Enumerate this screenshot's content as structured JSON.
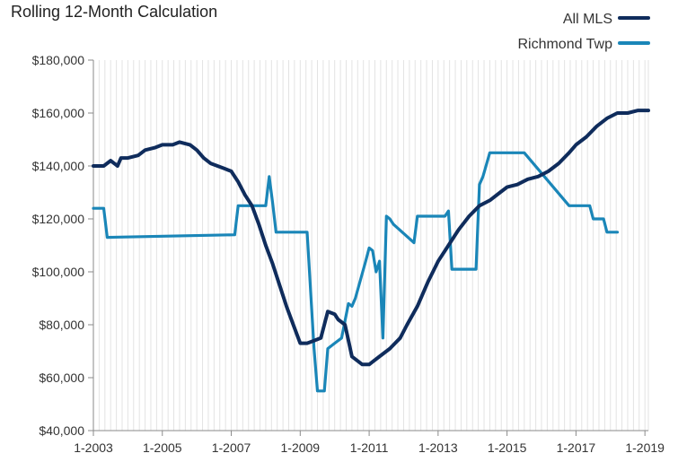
{
  "chart_data": {
    "type": "line",
    "title": "Rolling 12-Month Calculation",
    "xlabel": "",
    "ylabel": "",
    "grid": "vertical",
    "legend_position": "top-right",
    "x_ticks": [
      "1-2003",
      "1-2005",
      "1-2007",
      "1-2009",
      "1-2011",
      "1-2013",
      "1-2015",
      "1-2017",
      "1-2019"
    ],
    "y_ticks": [
      "$40,000",
      "$60,000",
      "$80,000",
      "$100,000",
      "$120,000",
      "$140,000",
      "$160,000",
      "$180,000"
    ],
    "xlim": [
      2003.0,
      2019.1
    ],
    "ylim": [
      40000,
      180000
    ],
    "series": [
      {
        "name": "All MLS",
        "color": "#0f2c5c",
        "x": [
          2003.0,
          2003.3,
          2003.5,
          2003.7,
          2003.8,
          2004.0,
          2004.3,
          2004.5,
          2004.8,
          2005.0,
          2005.3,
          2005.5,
          2005.8,
          2006.0,
          2006.2,
          2006.4,
          2006.6,
          2006.8,
          2007.0,
          2007.2,
          2007.4,
          2007.6,
          2007.8,
          2008.0,
          2008.2,
          2008.4,
          2008.6,
          2008.8,
          2009.0,
          2009.2,
          2009.4,
          2009.6,
          2009.8,
          2010.0,
          2010.1,
          2010.3,
          2010.5,
          2010.8,
          2011.0,
          2011.1,
          2011.3,
          2011.6,
          2011.9,
          2012.1,
          2012.4,
          2012.7,
          2013.0,
          2013.3,
          2013.6,
          2013.9,
          2014.2,
          2014.5,
          2014.8,
          2015.0,
          2015.3,
          2015.6,
          2015.9,
          2016.2,
          2016.5,
          2016.8,
          2017.0,
          2017.3,
          2017.6,
          2017.9,
          2018.2,
          2018.5,
          2018.8,
          2019.0,
          2019.1
        ],
        "y": [
          140000,
          140000,
          142000,
          140000,
          143000,
          143000,
          144000,
          146000,
          147000,
          148000,
          148000,
          149000,
          148000,
          146000,
          143000,
          141000,
          140000,
          139000,
          138000,
          134000,
          129000,
          125000,
          118000,
          110000,
          103000,
          95000,
          87000,
          80000,
          73000,
          73000,
          74000,
          75000,
          85000,
          84000,
          82000,
          80000,
          68000,
          65000,
          65000,
          66000,
          68000,
          71000,
          75000,
          80000,
          87000,
          96000,
          104000,
          110000,
          116000,
          121000,
          125000,
          127000,
          130000,
          132000,
          133000,
          135000,
          136000,
          138000,
          141000,
          145000,
          148000,
          151000,
          155000,
          158000,
          160000,
          160000,
          161000,
          161000,
          161000
        ]
      },
      {
        "name": "Richmond Twp",
        "color": "#1a86b8",
        "x": [
          2003.0,
          2003.3,
          2003.4,
          2007.1,
          2007.2,
          2008.0,
          2008.1,
          2008.2,
          2008.3,
          2009.2,
          2009.4,
          2009.5,
          2009.7,
          2009.8,
          2010.0,
          2010.2,
          2010.4,
          2010.5,
          2010.6,
          2010.9,
          2011.0,
          2011.1,
          2011.2,
          2011.3,
          2011.4,
          2011.5,
          2011.6,
          2011.7,
          2012.3,
          2012.4,
          2013.2,
          2013.3,
          2013.4,
          2014.1,
          2014.2,
          2014.3,
          2014.5,
          2015.5,
          2016.8,
          2017.4,
          2017.5,
          2017.8,
          2017.9,
          2018.2
        ],
        "y": [
          124000,
          124000,
          113000,
          114000,
          125000,
          125000,
          136000,
          126000,
          115000,
          115000,
          71000,
          55000,
          55000,
          71000,
          73000,
          75000,
          88000,
          87000,
          90000,
          104000,
          109000,
          108000,
          100000,
          104000,
          75000,
          121000,
          120000,
          118000,
          111000,
          121000,
          121000,
          123000,
          101000,
          101000,
          133000,
          136000,
          145000,
          145000,
          125000,
          125000,
          120000,
          120000,
          115000,
          115000
        ]
      }
    ]
  }
}
